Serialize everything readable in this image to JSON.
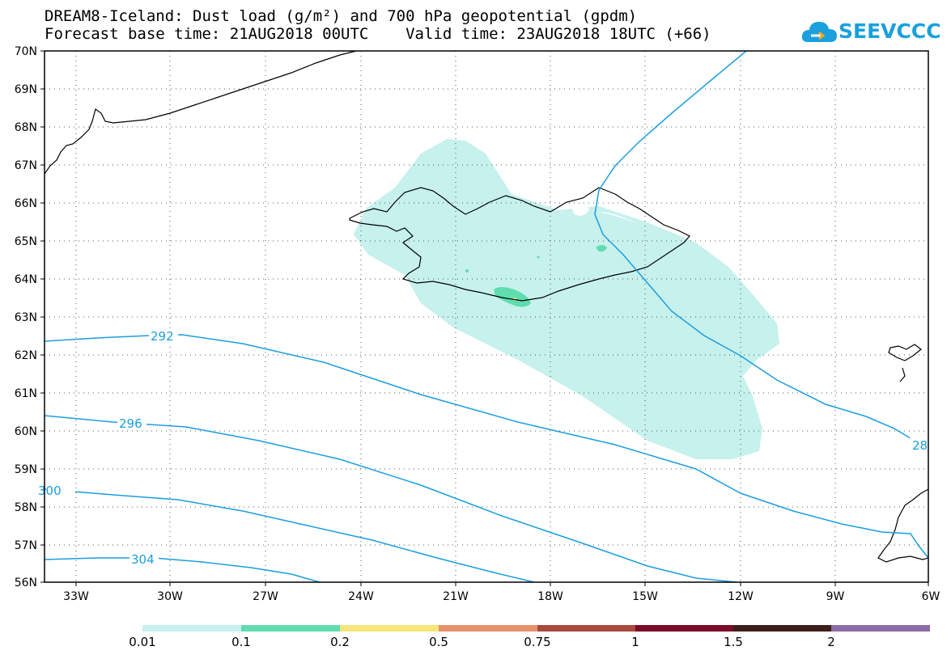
{
  "header": {
    "title_line1": "DREAM8-Iceland: Dust load (g/m²) and 700 hPa geopotential (gpdm)",
    "title_line2": "Forecast base time: 21AUG2018 00UTC    Valid time: 23AUG2018 18UTC (+66)"
  },
  "logo": {
    "text": "SEEVCCC",
    "icon": "cloud-icon",
    "color": "#1aa0dd",
    "accent": "#f5a623"
  },
  "map": {
    "lat_labels": [
      "70N",
      "69N",
      "68N",
      "67N",
      "66N",
      "65N",
      "64N",
      "63N",
      "62N",
      "61N",
      "60N",
      "59N",
      "58N",
      "57N",
      "56N"
    ],
    "lon_labels": [
      "33W",
      "30W",
      "27W",
      "24W",
      "21W",
      "18W",
      "15W",
      "12W",
      "9W",
      "6W"
    ],
    "lat_range": [
      56,
      70
    ],
    "lon_range": [
      -34.5,
      -6
    ],
    "grid": "dotted",
    "contour_color": "#1a9ee0",
    "coast_color": "#000000",
    "dust_fill_light": "#c6f1ec",
    "dust_fill_mid": "#5fdcb0",
    "dust_fill_high": "#f5e67a"
  },
  "contours": [
    {
      "label": "292"
    },
    {
      "label": "296"
    },
    {
      "label": "300"
    },
    {
      "label": "304"
    },
    {
      "label": "28"
    }
  ],
  "legend": {
    "colors": [
      "#c6f1ec",
      "#5fdcb0",
      "#f5e67a",
      "#e8916a",
      "#a84a3e",
      "#7a0a2a",
      "#3a2018",
      "#8c6ba6"
    ],
    "labels": [
      "0.01",
      "0.1",
      "0.2",
      "0.5",
      "0.75",
      "1",
      "1.5",
      "2"
    ]
  }
}
